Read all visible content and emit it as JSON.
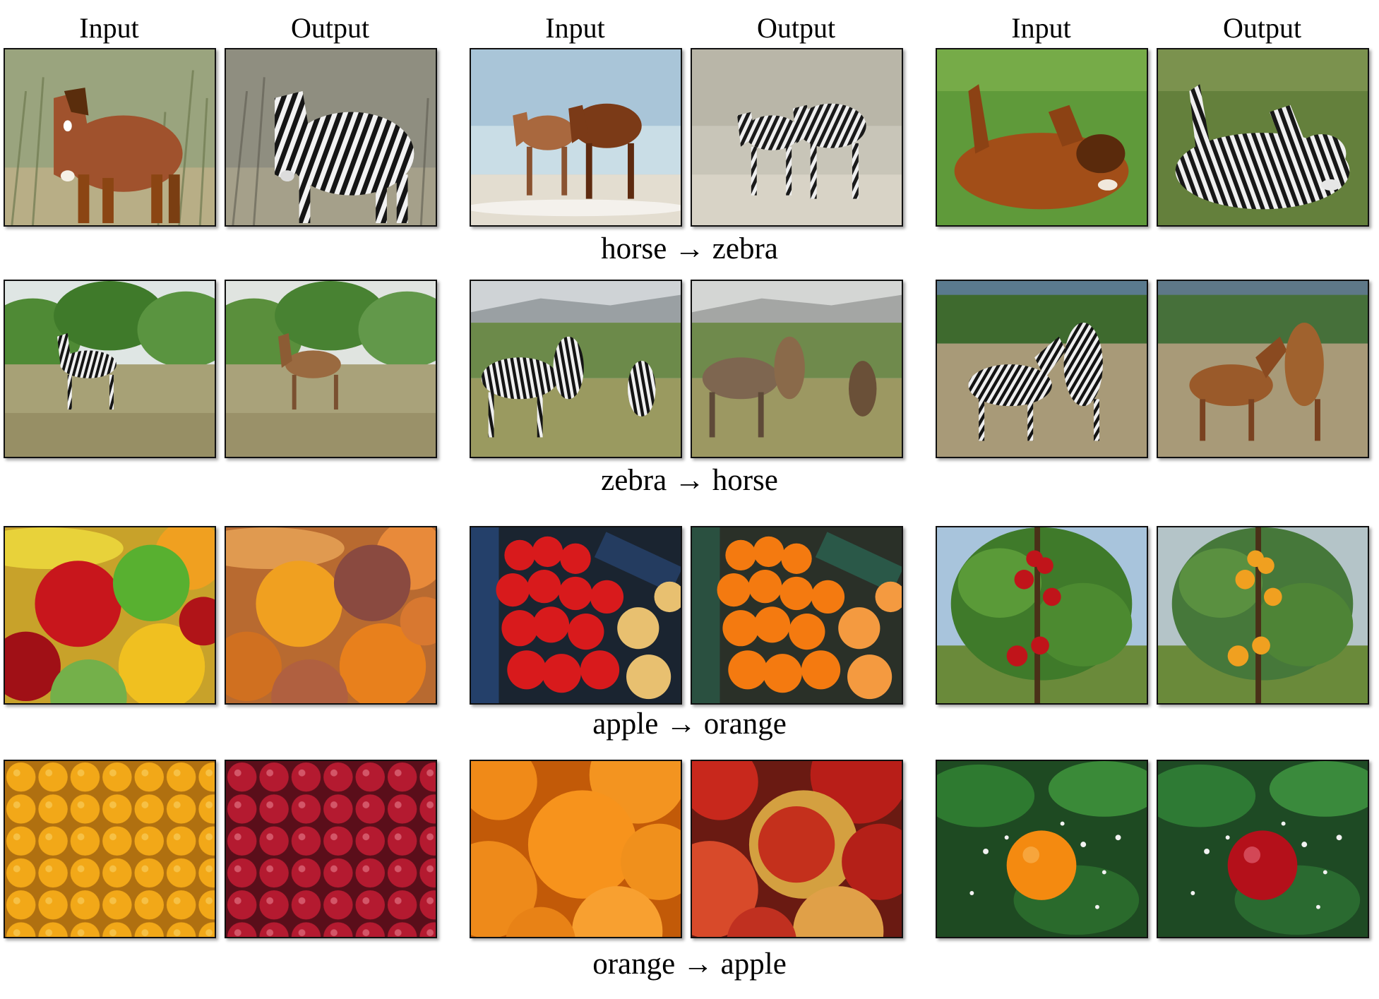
{
  "column_headers": [
    "Input",
    "Output",
    "Input",
    "Output",
    "Input",
    "Output"
  ],
  "captions": [
    "horse → zebra",
    "zebra → horse",
    "apple → orange",
    "orange → apple"
  ],
  "rows": [
    {
      "caption": "horse → zebra",
      "pairs": [
        {
          "input": "brown-horse-in-dry-grass",
          "output": "zebra-in-dry-grass"
        },
        {
          "input": "two-horses-on-beach",
          "output": "two-zebras-on-beach"
        },
        {
          "input": "horse-rolling-on-grass",
          "output": "zebra-rolling-on-grass"
        }
      ]
    },
    {
      "caption": "zebra → horse",
      "pairs": [
        {
          "input": "zebra-in-savanna",
          "output": "horse-in-savanna"
        },
        {
          "input": "three-zebras-in-grassland",
          "output": "three-horses-in-grassland"
        },
        {
          "input": "two-zebras-playing",
          "output": "two-horses-playing"
        }
      ]
    },
    {
      "caption": "apple → orange",
      "pairs": [
        {
          "input": "mixed-fruit-pile",
          "output": "oranges-pile"
        },
        {
          "input": "red-apples-in-crate",
          "output": "oranges-in-crate"
        },
        {
          "input": "apples-on-tree",
          "output": "oranges-on-tree"
        }
      ]
    },
    {
      "caption": "orange → apple",
      "pairs": [
        {
          "input": "oranges-grid",
          "output": "red-apples-grid"
        },
        {
          "input": "oranges-closeup",
          "output": "apples-closeup"
        },
        {
          "input": "orange-on-branch",
          "output": "red-apple-on-branch"
        }
      ]
    }
  ]
}
